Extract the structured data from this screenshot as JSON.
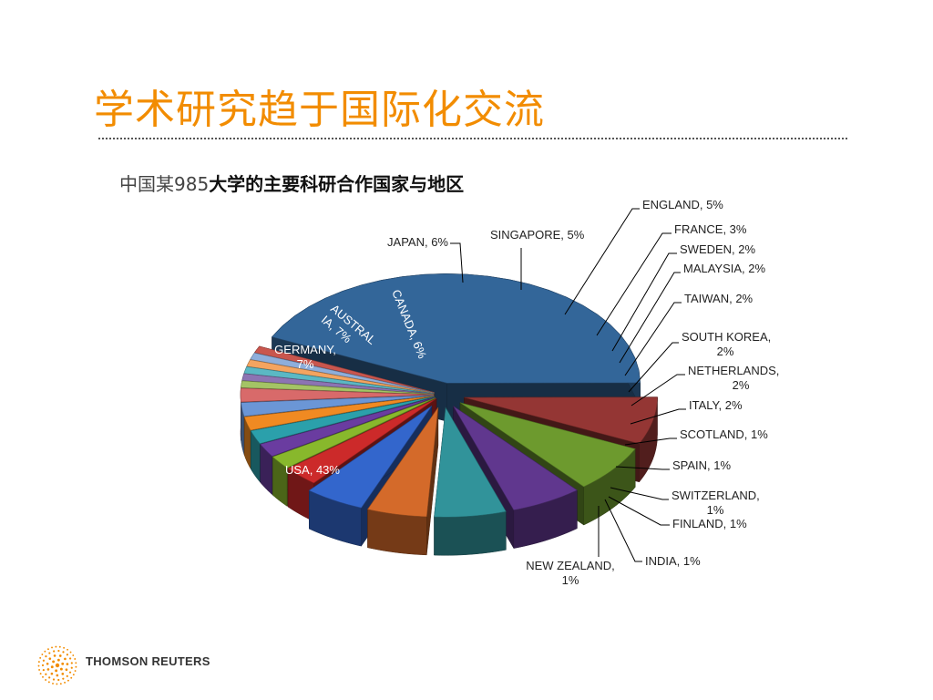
{
  "slide": {
    "title": "学术研究趋于国际化交流",
    "chart_title_prefix": "中国某985",
    "chart_title_main": "大学的主要科研合作国家与地区"
  },
  "logo": {
    "text": "THOMSON REUTERS",
    "color": "#f28c00"
  },
  "chart_data": {
    "type": "pie",
    "style": "3d-exploded",
    "title": "中国某985大学的主要科研合作国家与地区",
    "slices": [
      {
        "label": "USA",
        "value": 43,
        "pct_label": "USA, 43%",
        "color": "#336699"
      },
      {
        "label": "GERMANY",
        "value": 7,
        "pct_label": "GERMANY, 7%",
        "color": "#943634"
      },
      {
        "label": "AUSTRALIA",
        "value": 7,
        "pct_label": "AUSTRALIA, 7%",
        "color": "#6d9a2e"
      },
      {
        "label": "CANADA",
        "value": 6,
        "pct_label": "CANADA, 6%",
        "color": "#60378e"
      },
      {
        "label": "JAPAN",
        "value": 6,
        "pct_label": "JAPAN, 6%",
        "color": "#31939a"
      },
      {
        "label": "SINGAPORE",
        "value": 5,
        "pct_label": "SINGAPORE, 5%",
        "color": "#d46a2a"
      },
      {
        "label": "ENGLAND",
        "value": 5,
        "pct_label": "ENGLAND, 5%",
        "color": "#3366cc"
      },
      {
        "label": "FRANCE",
        "value": 3,
        "pct_label": "FRANCE, 3%",
        "color": "#cc2a2a"
      },
      {
        "label": "SWEDEN",
        "value": 2,
        "pct_label": "SWEDEN, 2%",
        "color": "#88b82c"
      },
      {
        "label": "MALAYSIA",
        "value": 2,
        "pct_label": "MALAYSIA, 2%",
        "color": "#6a3ca0"
      },
      {
        "label": "TAIWAN",
        "value": 2,
        "pct_label": "TAIWAN, 2%",
        "color": "#2ba0ab"
      },
      {
        "label": "SOUTH KOREA",
        "value": 2,
        "pct_label": "SOUTH KOREA, 2%",
        "color": "#f08a22"
      },
      {
        "label": "NETHERLANDS",
        "value": 2,
        "pct_label": "NETHERLANDS, 2%",
        "color": "#6b96d6"
      },
      {
        "label": "ITALY",
        "value": 2,
        "pct_label": "ITALY, 2%",
        "color": "#d86a6a"
      },
      {
        "label": "SCOTLAND",
        "value": 1,
        "pct_label": "SCOTLAND, 1%",
        "color": "#a4c465"
      },
      {
        "label": "SPAIN",
        "value": 1,
        "pct_label": "SPAIN, 1%",
        "color": "#8c74b3"
      },
      {
        "label": "SWITZERLAND",
        "value": 1,
        "pct_label": "SWITZERLAND, 1%",
        "color": "#5bb8c4"
      },
      {
        "label": "FINLAND",
        "value": 1,
        "pct_label": "FINLAND, 1%",
        "color": "#f4a460"
      },
      {
        "label": "INDIA",
        "value": 1,
        "pct_label": "INDIA, 1%",
        "color": "#8eaedb"
      },
      {
        "label": "NEW ZEALAND",
        "value": 1,
        "pct_label": "NEW ZEALAND, 1%",
        "color": "#c9564e"
      }
    ]
  }
}
